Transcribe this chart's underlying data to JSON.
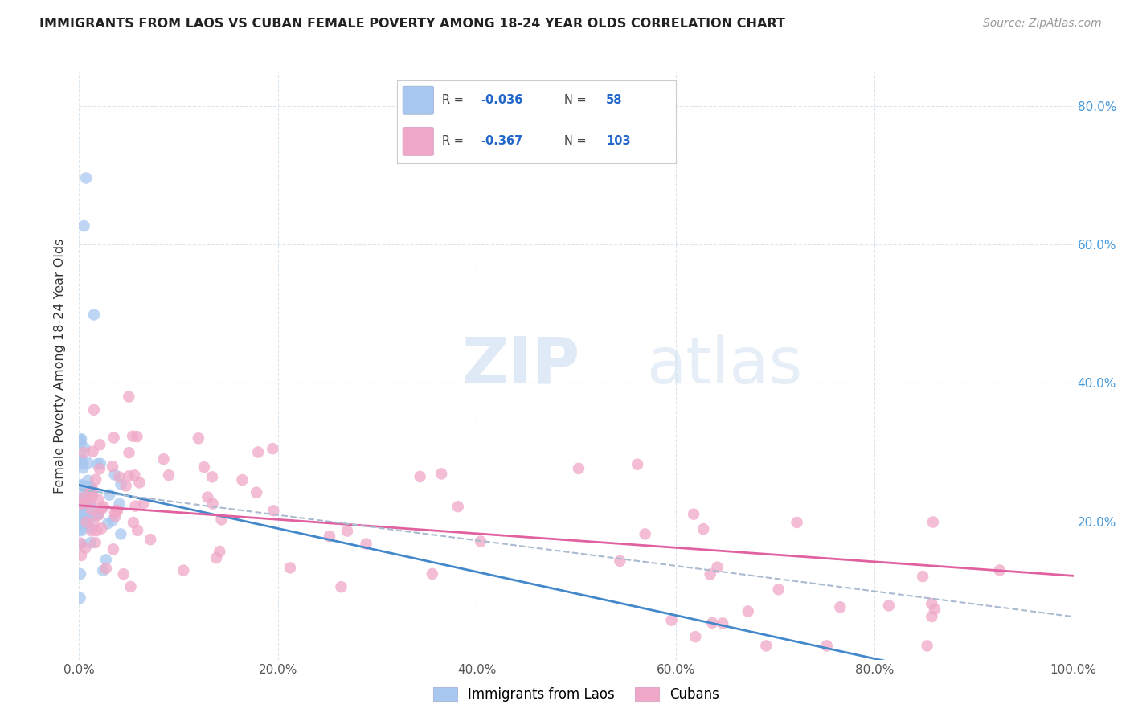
{
  "title": "IMMIGRANTS FROM LAOS VS CUBAN FEMALE POVERTY AMONG 18-24 YEAR OLDS CORRELATION CHART",
  "source": "Source: ZipAtlas.com",
  "ylabel": "Female Poverty Among 18-24 Year Olds",
  "xlim": [
    0,
    1.0
  ],
  "ylim": [
    0,
    0.85
  ],
  "laos_R": -0.036,
  "laos_N": 58,
  "cuban_R": -0.367,
  "cuban_N": 103,
  "laos_color": "#a8c8f0",
  "cuban_color": "#f0a8c8",
  "laos_line_color": "#4488cc",
  "cuban_line_color": "#e060a0",
  "overall_line_color": "#b0c8e8",
  "background_color": "#ffffff",
  "watermark_zip": "ZIP",
  "watermark_atlas": "atlas",
  "legend_box_color": "#f8f8ff"
}
